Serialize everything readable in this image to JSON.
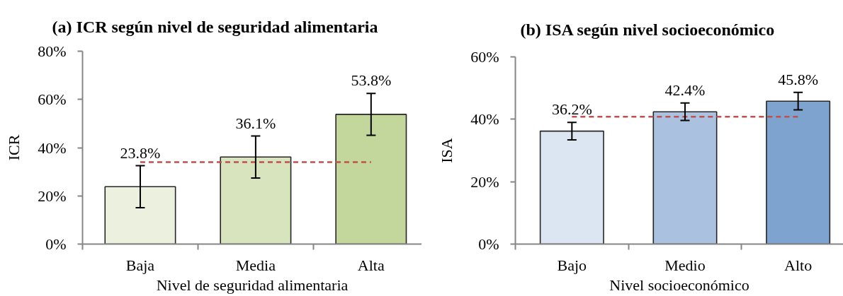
{
  "chart_data": [
    {
      "type": "bar",
      "title": "(a) ICR según nivel de seguridad alimentaria",
      "xlabel": "Nivel de seguridad alimentaria",
      "ylabel": "ICR",
      "categories": [
        "Baja",
        "Media",
        "Alta"
      ],
      "values": [
        23.8,
        36.1,
        53.8
      ],
      "colors": [
        "#ebf1de",
        "#d7e4bd",
        "#c3d69b"
      ],
      "errors": [
        8.7,
        8.7,
        8.7
      ],
      "value_labels": [
        "23.8%",
        "36.1%",
        "53.8%"
      ],
      "ylim": [
        0,
        80
      ],
      "yticks": [
        {
          "value": 0,
          "label": "0%"
        },
        {
          "value": 20,
          "label": "20%"
        },
        {
          "value": 40,
          "label": "40%"
        },
        {
          "value": 60,
          "label": "60%"
        },
        {
          "value": 80,
          "label": "80%"
        }
      ],
      "ref_lines": [
        {
          "axis": "y",
          "value": 34,
          "color": "#c0504d",
          "line_style": "dashed"
        }
      ],
      "grid": false
    },
    {
      "type": "bar",
      "title": "(b) ISA según nivel socioeconómico",
      "xlabel": "Nivel socioeconómico",
      "ylabel": "ISA",
      "categories": [
        "Bajo",
        "Medio",
        "Alto"
      ],
      "values": [
        36.2,
        42.4,
        45.8
      ],
      "colors": [
        "#dce6f2",
        "#aac1e0",
        "#7ea3cf"
      ],
      "errors": [
        2.8,
        2.8,
        2.8
      ],
      "value_labels": [
        "36.2%",
        "42.4%",
        "45.8%"
      ],
      "ylim": [
        0,
        60
      ],
      "yticks": [
        {
          "value": 0,
          "label": "0%"
        },
        {
          "value": 20,
          "label": "20%"
        },
        {
          "value": 40,
          "label": "40%"
        },
        {
          "value": 60,
          "label": "60%"
        }
      ],
      "ref_lines": [
        {
          "axis": "y",
          "value": 40.8,
          "color": "#c0504d",
          "line_style": "dashed"
        }
      ],
      "grid": false
    }
  ]
}
